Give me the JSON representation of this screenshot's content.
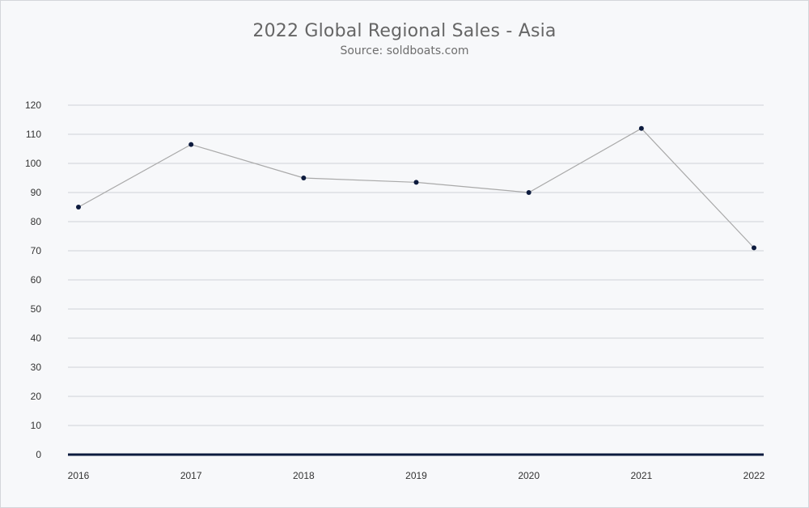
{
  "chart_data": {
    "type": "line",
    "title": "2022 Global Regional Sales - Asia",
    "subtitle": "Source: soldboats.com",
    "xlabel": "",
    "ylabel": "",
    "categories": [
      "2016",
      "2017",
      "2018",
      "2019",
      "2020",
      "2021",
      "2022"
    ],
    "series": [
      {
        "values": [
          85,
          106.5,
          95,
          93.5,
          90,
          112,
          71
        ]
      }
    ],
    "ylim": [
      0,
      120
    ],
    "yticks": [
      0,
      10,
      20,
      30,
      40,
      50,
      60,
      70,
      80,
      90,
      100,
      110,
      120
    ],
    "grid": true,
    "legend": "none",
    "colors": {
      "line": "#a9a9a9",
      "marker": "#0d1b3e",
      "baseline": "#0d1b3e",
      "grid": "#cfd2d8",
      "background": "#f7f8fa"
    }
  }
}
